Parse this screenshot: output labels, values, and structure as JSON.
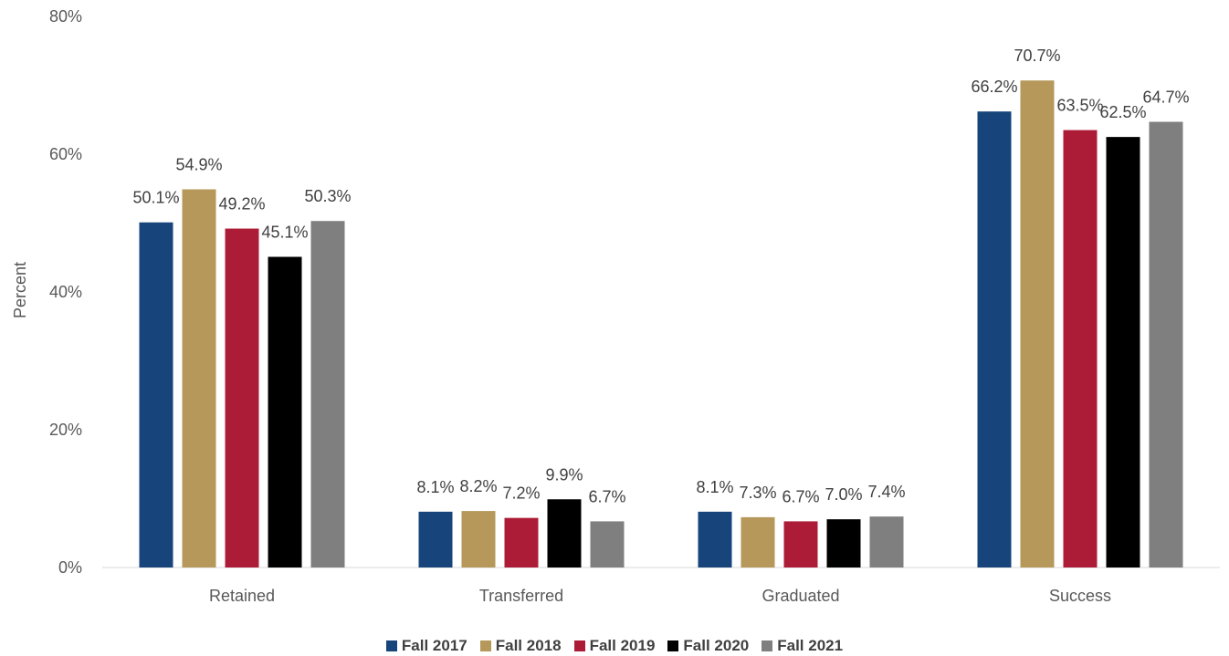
{
  "chart_data": {
    "type": "bar",
    "categories": [
      "Retained",
      "Transferred",
      "Graduated",
      "Success"
    ],
    "series": [
      {
        "name": "Fall 2017",
        "color": "#17447a",
        "values": [
          50.1,
          8.1,
          8.1,
          66.2
        ],
        "labels": [
          "50.1%",
          "8.1%",
          "8.1%",
          "66.2%"
        ]
      },
      {
        "name": "Fall 2018",
        "color": "#b5985a",
        "values": [
          54.9,
          8.2,
          7.3,
          70.7
        ],
        "labels": [
          "54.9%",
          "8.2%",
          "7.3%",
          "70.7%"
        ]
      },
      {
        "name": "Fall 2019",
        "color": "#ad1c37",
        "values": [
          49.2,
          7.2,
          6.7,
          63.5
        ],
        "labels": [
          "49.2%",
          "7.2%",
          "6.7%",
          "63.5%"
        ]
      },
      {
        "name": "Fall 2020",
        "color": "#000000",
        "values": [
          45.1,
          9.9,
          7.0,
          62.5
        ],
        "labels": [
          "45.1%",
          "9.9%",
          "7.0%",
          "62.5%"
        ]
      },
      {
        "name": "Fall 2021",
        "color": "#7f7f7f",
        "values": [
          50.3,
          6.7,
          7.4,
          64.7
        ],
        "labels": [
          "50.3%",
          "6.7%",
          "7.4%",
          "64.7%"
        ]
      }
    ],
    "ylabel": "Percent",
    "xlabel": "",
    "ylim": [
      0,
      80
    ],
    "yticks": [
      0,
      20,
      40,
      60,
      80
    ],
    "ytick_labels": [
      "0%",
      "20%",
      "40%",
      "60%",
      "80%"
    ],
    "grid": false,
    "legend_position": "bottom"
  }
}
